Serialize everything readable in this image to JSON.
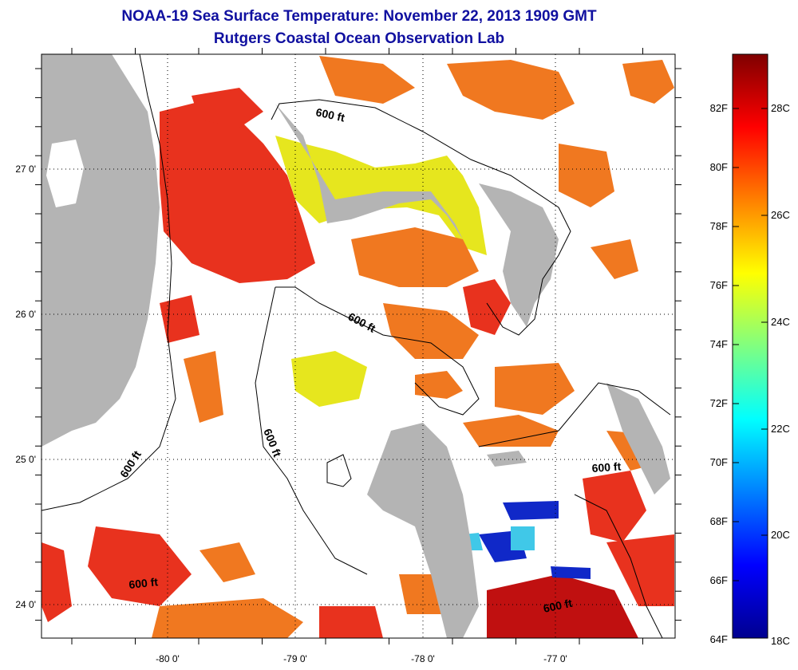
{
  "title": "NOAA-19 Sea Surface Temperature:  November 22, 2013 1909 GMT",
  "subtitle": "Rutgers Coastal Ocean Observation Lab",
  "lat_labels": [
    "27 0'",
    "26 0'",
    "25 0'",
    "24 0'"
  ],
  "lon_labels": [
    "-80 0'",
    "-79 0'",
    "-78 0'",
    "-77 0'"
  ],
  "contour_labels": [
    "600 ft",
    "600 ft",
    "600 ft",
    "600 ft",
    "600 ft",
    "600 ft"
  ],
  "colorbar": {
    "f_labels": [
      "82F",
      "80F",
      "78F",
      "76F",
      "74F",
      "72F",
      "70F",
      "68F",
      "66F",
      "64F"
    ],
    "c_labels": [
      "28C",
      "26C",
      "24C",
      "22C",
      "20C",
      "18C"
    ],
    "colors": [
      "#7f0000",
      "#ff0000",
      "#ff8000",
      "#ffff00",
      "#80ff80",
      "#00ffff",
      "#0080ff",
      "#0000ff",
      "#00008f"
    ]
  },
  "map_colors": {
    "land": "#b4b4b4",
    "warm": "#e8321e",
    "orange": "#f07820",
    "yellow": "#e6e61e",
    "deep": "#c01010",
    "blue": "#1028c8",
    "cyan": "#40c8e8"
  }
}
